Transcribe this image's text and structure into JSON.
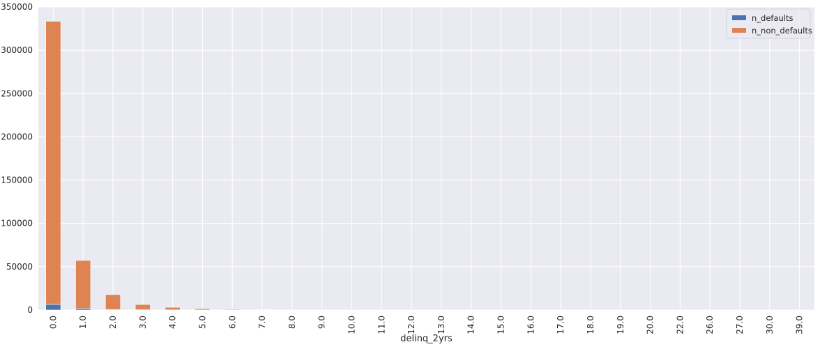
{
  "colors": {
    "background": "#EAEAF2",
    "grid": "#FFFFFF",
    "n_defaults": "#4C72B0",
    "n_non_defaults": "#DD8452"
  },
  "chart_data": {
    "type": "bar",
    "stacked": true,
    "xlabel": "delinq_2yrs",
    "ylabel": "",
    "ylim": [
      0,
      350000
    ],
    "yticks": [
      "0",
      "50000",
      "100000",
      "150000",
      "200000",
      "250000",
      "300000",
      "350000"
    ],
    "grid": true,
    "legend_position": "top-right",
    "categories": [
      "0.0",
      "1.0",
      "2.0",
      "3.0",
      "4.0",
      "5.0",
      "6.0",
      "7.0",
      "8.0",
      "9.0",
      "10.0",
      "11.0",
      "12.0",
      "13.0",
      "14.0",
      "15.0",
      "16.0",
      "17.0",
      "18.0",
      "19.0",
      "20.0",
      "22.0",
      "26.0",
      "27.0",
      "30.0",
      "39.0"
    ],
    "series": [
      {
        "name": "n_defaults",
        "values": [
          6500,
          1800,
          600,
          250,
          120,
          60,
          30,
          15,
          10,
          5,
          3,
          2,
          1,
          1,
          1,
          0,
          0,
          0,
          0,
          0,
          0,
          0,
          0,
          0,
          0,
          0
        ]
      },
      {
        "name": "n_non_defaults",
        "values": [
          327000,
          55500,
          17200,
          6100,
          3000,
          1500,
          800,
          450,
          250,
          150,
          80,
          50,
          30,
          20,
          15,
          10,
          8,
          5,
          4,
          3,
          2,
          2,
          1,
          1,
          1,
          1
        ]
      }
    ]
  }
}
